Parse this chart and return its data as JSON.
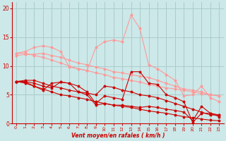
{
  "background_color": "#cce8e8",
  "grid_color": "#aacccc",
  "line_color_dark": "#cc0000",
  "line_color_light": "#ff9999",
  "xlabel": "Vent moyen/en rafales ( km/h )",
  "xlim": [
    -0.5,
    23.5
  ],
  "ylim": [
    0,
    21
  ],
  "yticks": [
    0,
    5,
    10,
    15,
    20
  ],
  "xticks": [
    0,
    1,
    2,
    3,
    4,
    5,
    6,
    7,
    8,
    9,
    10,
    11,
    12,
    13,
    14,
    15,
    16,
    17,
    18,
    19,
    20,
    21,
    22,
    23
  ],
  "lines_dark": [
    [
      7.3,
      7.5,
      7.5,
      7.0,
      6.5,
      6.2,
      5.8,
      5.5,
      5.3,
      5.0,
      6.5,
      6.3,
      5.8,
      5.5,
      5.0,
      4.8,
      4.5,
      4.0,
      3.5,
      3.0,
      2.5,
      2.0,
      1.5,
      1.5
    ],
    [
      7.3,
      7.3,
      7.0,
      6.5,
      6.2,
      7.2,
      7.0,
      6.5,
      5.5,
      3.5,
      4.8,
      4.5,
      4.2,
      9.0,
      9.0,
      7.0,
      6.8,
      5.0,
      4.5,
      3.8,
      0.2,
      1.8,
      1.8,
      1.2
    ],
    [
      7.3,
      7.2,
      6.5,
      5.8,
      7.0,
      7.2,
      7.0,
      5.5,
      5.0,
      3.2,
      3.5,
      3.2,
      3.2,
      3.0,
      2.8,
      3.0,
      2.8,
      2.5,
      2.3,
      2.0,
      0.5,
      3.0,
      1.8,
      1.5
    ],
    [
      7.3,
      7.0,
      6.5,
      6.0,
      5.5,
      5.0,
      4.8,
      4.5,
      4.2,
      3.8,
      3.5,
      3.2,
      3.0,
      2.8,
      2.5,
      2.2,
      2.0,
      1.8,
      1.5,
      1.2,
      1.0,
      0.8,
      0.6,
      0.5
    ]
  ],
  "lines_light": [
    [
      12.2,
      12.5,
      13.2,
      13.5,
      13.2,
      12.5,
      9.8,
      9.5,
      9.2,
      13.2,
      14.2,
      14.5,
      14.2,
      18.8,
      16.5,
      10.2,
      9.5,
      8.5,
      7.5,
      4.8,
      5.0,
      6.5,
      4.5,
      3.8
    ],
    [
      11.8,
      12.0,
      12.0,
      12.2,
      11.8,
      11.5,
      11.0,
      10.5,
      10.2,
      9.8,
      9.5,
      9.0,
      8.8,
      8.5,
      8.2,
      8.0,
      7.5,
      7.0,
      6.5,
      6.0,
      5.8,
      5.5,
      5.0,
      4.8
    ],
    [
      12.2,
      12.2,
      11.8,
      11.5,
      11.0,
      10.5,
      10.0,
      9.5,
      9.2,
      8.8,
      8.5,
      8.0,
      7.8,
      7.5,
      7.2,
      6.8,
      6.5,
      6.2,
      6.0,
      5.8,
      5.5,
      5.2,
      5.0,
      4.8
    ]
  ]
}
